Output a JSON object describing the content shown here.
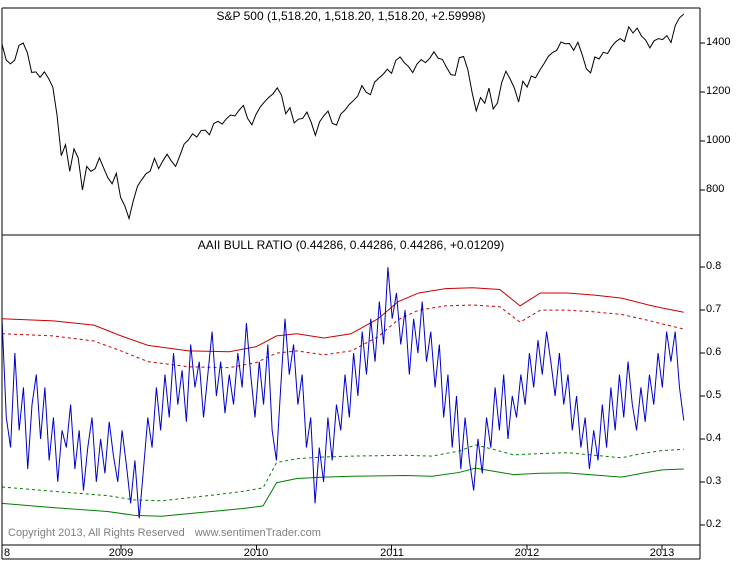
{
  "page": {
    "background": "#ffffff",
    "border_color": "#000000"
  },
  "footer": {
    "copyright": "Copyright 2013, All Rights Reserved",
    "website": "www.sentimenTrader.com",
    "text_color": "#7f7f7f"
  },
  "x_axis": {
    "domain": [
      2008.12,
      2013.28
    ],
    "edge_label": "8",
    "ticks": [
      {
        "label": "2009",
        "value": 2009
      },
      {
        "label": "2010",
        "value": 2010
      },
      {
        "label": "2011",
        "value": 2011
      },
      {
        "label": "2012",
        "value": 2012
      },
      {
        "label": "2013",
        "value": 2013
      }
    ]
  },
  "chart_data": [
    {
      "panel": "price",
      "type": "line",
      "title": "S&P 500 (1,518.20, 1,518.20, 1,518.20, +2.59998)",
      "y_domain": [
        616,
        1543
      ],
      "y_ticks": [
        {
          "label": "1400",
          "value": 1400
        },
        {
          "label": "1200",
          "value": 1200
        },
        {
          "label": "1000",
          "value": 1000
        },
        {
          "label": "800",
          "value": 800
        }
      ],
      "series": [
        {
          "name": "S&P 500",
          "color": "#000000",
          "style": "solid",
          "x_start": 2008.12,
          "x_end": 2013.16,
          "values": [
            1395,
            1330,
            1315,
            1330,
            1390,
            1400,
            1360,
            1280,
            1282,
            1260,
            1282,
            1255,
            1220,
            1105,
            940,
            985,
            876,
            968,
            930,
            800,
            896,
            876,
            887,
            931,
            890,
            850,
            825,
            868,
            770,
            735,
            683,
            756,
            815,
            842,
            866,
            877,
            929,
            887,
            919,
            946,
            918,
            896,
            940,
            987,
            1004,
            1029,
            1016,
            1042,
            1044,
            1025,
            1071,
            1080,
            1069,
            1091,
            1106,
            1102,
            1126,
            1145,
            1092,
            1066,
            1109,
            1139,
            1160,
            1178,
            1192,
            1217,
            1187,
            1111,
            1136,
            1074,
            1089,
            1092,
            1118,
            1077,
            1023,
            1078,
            1103,
            1122,
            1072,
            1065,
            1110,
            1126,
            1149,
            1165,
            1183,
            1226,
            1199,
            1189,
            1240,
            1257,
            1272,
            1293,
            1276,
            1329,
            1343,
            1320,
            1304,
            1279,
            1314,
            1332,
            1320,
            1337,
            1364,
            1338,
            1333,
            1300,
            1271,
            1268,
            1340,
            1345,
            1292,
            1199,
            1123,
            1177,
            1154,
            1216,
            1131,
            1155,
            1238,
            1285,
            1253,
            1216,
            1159,
            1244,
            1220,
            1265,
            1258,
            1289,
            1316,
            1345,
            1361,
            1370,
            1404,
            1397,
            1398,
            1370,
            1403,
            1353,
            1295,
            1278,
            1343,
            1335,
            1362,
            1357,
            1386,
            1406,
            1418,
            1406,
            1466,
            1441,
            1461,
            1429,
            1412,
            1380,
            1409,
            1418,
            1414,
            1430,
            1402,
            1472,
            1503,
            1518
          ]
        }
      ]
    },
    {
      "panel": "indicator",
      "type": "line",
      "title": "AAII BULL RATIO (0.44286, 0.44286, 0.44286, +0.01209)",
      "y_domain": [
        0.153,
        0.875
      ],
      "y_ticks": [
        {
          "label": "0.8",
          "value": 0.8
        },
        {
          "label": "0.7",
          "value": 0.7
        },
        {
          "label": "0.6",
          "value": 0.6
        },
        {
          "label": "0.5",
          "value": 0.5
        },
        {
          "label": "0.4",
          "value": 0.4
        },
        {
          "label": "0.3",
          "value": 0.3
        },
        {
          "label": "0.2",
          "value": 0.2
        }
      ],
      "series": [
        {
          "name": "Upper Band (dashed)",
          "color": "#cc0000",
          "style": "dashed",
          "points": [
            [
              2008.12,
              0.645
            ],
            [
              2008.5,
              0.64
            ],
            [
              2008.8,
              0.628
            ],
            [
              2009.0,
              0.605
            ],
            [
              2009.2,
              0.58
            ],
            [
              2009.5,
              0.568
            ],
            [
              2009.8,
              0.566
            ],
            [
              2010.0,
              0.578
            ],
            [
              2010.15,
              0.6
            ],
            [
              2010.3,
              0.605
            ],
            [
              2010.5,
              0.596
            ],
            [
              2010.7,
              0.605
            ],
            [
              2010.9,
              0.638
            ],
            [
              2011.05,
              0.678
            ],
            [
              2011.2,
              0.7
            ],
            [
              2011.4,
              0.71
            ],
            [
              2011.6,
              0.712
            ],
            [
              2011.8,
              0.708
            ],
            [
              2011.95,
              0.672
            ],
            [
              2012.1,
              0.7
            ],
            [
              2012.3,
              0.7
            ],
            [
              2012.5,
              0.696
            ],
            [
              2012.7,
              0.69
            ],
            [
              2012.9,
              0.676
            ],
            [
              2013.0,
              0.668
            ],
            [
              2013.16,
              0.656
            ]
          ]
        },
        {
          "name": "Upper Band (solid)",
          "color": "#cc0000",
          "style": "solid",
          "points": [
            [
              2008.12,
              0.68
            ],
            [
              2008.5,
              0.675
            ],
            [
              2008.8,
              0.665
            ],
            [
              2009.0,
              0.64
            ],
            [
              2009.2,
              0.618
            ],
            [
              2009.5,
              0.605
            ],
            [
              2009.8,
              0.603
            ],
            [
              2010.0,
              0.615
            ],
            [
              2010.15,
              0.64
            ],
            [
              2010.3,
              0.645
            ],
            [
              2010.5,
              0.635
            ],
            [
              2010.7,
              0.645
            ],
            [
              2010.9,
              0.68
            ],
            [
              2011.05,
              0.72
            ],
            [
              2011.2,
              0.74
            ],
            [
              2011.4,
              0.75
            ],
            [
              2011.6,
              0.752
            ],
            [
              2011.8,
              0.748
            ],
            [
              2011.95,
              0.71
            ],
            [
              2012.1,
              0.74
            ],
            [
              2012.3,
              0.74
            ],
            [
              2012.5,
              0.735
            ],
            [
              2012.7,
              0.728
            ],
            [
              2012.9,
              0.712
            ],
            [
              2013.0,
              0.705
            ],
            [
              2013.16,
              0.695
            ]
          ]
        },
        {
          "name": "Lower Band (dashed)",
          "color": "#007f00",
          "style": "dashed",
          "points": [
            [
              2008.12,
              0.288
            ],
            [
              2008.5,
              0.278
            ],
            [
              2008.9,
              0.268
            ],
            [
              2009.1,
              0.258
            ],
            [
              2009.3,
              0.256
            ],
            [
              2009.5,
              0.263
            ],
            [
              2009.7,
              0.27
            ],
            [
              2009.9,
              0.278
            ],
            [
              2010.05,
              0.286
            ],
            [
              2010.15,
              0.345
            ],
            [
              2010.3,
              0.354
            ],
            [
              2010.5,
              0.358
            ],
            [
              2010.7,
              0.36
            ],
            [
              2010.9,
              0.361
            ],
            [
              2011.1,
              0.362
            ],
            [
              2011.3,
              0.36
            ],
            [
              2011.5,
              0.372
            ],
            [
              2011.62,
              0.386
            ],
            [
              2011.75,
              0.376
            ],
            [
              2011.9,
              0.363
            ],
            [
              2012.1,
              0.366
            ],
            [
              2012.3,
              0.368
            ],
            [
              2012.5,
              0.362
            ],
            [
              2012.7,
              0.356
            ],
            [
              2012.85,
              0.366
            ],
            [
              2013.0,
              0.373
            ],
            [
              2013.16,
              0.376
            ]
          ]
        },
        {
          "name": "Lower Band (solid)",
          "color": "#007f00",
          "style": "solid",
          "points": [
            [
              2008.12,
              0.25
            ],
            [
              2008.5,
              0.24
            ],
            [
              2008.9,
              0.231
            ],
            [
              2009.1,
              0.222
            ],
            [
              2009.3,
              0.22
            ],
            [
              2009.5,
              0.226
            ],
            [
              2009.7,
              0.232
            ],
            [
              2009.9,
              0.238
            ],
            [
              2010.05,
              0.244
            ],
            [
              2010.15,
              0.298
            ],
            [
              2010.3,
              0.308
            ],
            [
              2010.5,
              0.311
            ],
            [
              2010.7,
              0.313
            ],
            [
              2010.9,
              0.314
            ],
            [
              2011.1,
              0.315
            ],
            [
              2011.3,
              0.313
            ],
            [
              2011.5,
              0.322
            ],
            [
              2011.62,
              0.332
            ],
            [
              2011.75,
              0.325
            ],
            [
              2011.9,
              0.317
            ],
            [
              2012.1,
              0.32
            ],
            [
              2012.3,
              0.321
            ],
            [
              2012.5,
              0.316
            ],
            [
              2012.7,
              0.311
            ],
            [
              2012.85,
              0.32
            ],
            [
              2013.0,
              0.328
            ],
            [
              2013.16,
              0.33
            ]
          ]
        },
        {
          "name": "AAII Bull Ratio",
          "color": "#0000cc",
          "style": "solid",
          "x_start": 2008.12,
          "x_end": 2013.16,
          "values": [
            0.68,
            0.45,
            0.38,
            0.6,
            0.42,
            0.52,
            0.33,
            0.48,
            0.55,
            0.4,
            0.52,
            0.35,
            0.45,
            0.3,
            0.42,
            0.38,
            0.48,
            0.33,
            0.42,
            0.28,
            0.38,
            0.45,
            0.3,
            0.4,
            0.32,
            0.44,
            0.36,
            0.3,
            0.42,
            0.34,
            0.25,
            0.35,
            0.215,
            0.33,
            0.45,
            0.38,
            0.52,
            0.42,
            0.55,
            0.45,
            0.6,
            0.48,
            0.56,
            0.44,
            0.62,
            0.52,
            0.58,
            0.45,
            0.55,
            0.65,
            0.5,
            0.58,
            0.46,
            0.55,
            0.48,
            0.6,
            0.52,
            0.67,
            0.55,
            0.45,
            0.58,
            0.48,
            0.62,
            0.42,
            0.35,
            0.52,
            0.68,
            0.55,
            0.62,
            0.48,
            0.55,
            0.38,
            0.45,
            0.25,
            0.38,
            0.3,
            0.45,
            0.35,
            0.48,
            0.42,
            0.55,
            0.45,
            0.6,
            0.5,
            0.65,
            0.55,
            0.68,
            0.58,
            0.72,
            0.62,
            0.8,
            0.68,
            0.74,
            0.62,
            0.7,
            0.55,
            0.68,
            0.6,
            0.72,
            0.58,
            0.65,
            0.52,
            0.62,
            0.45,
            0.55,
            0.38,
            0.5,
            0.33,
            0.45,
            0.35,
            0.28,
            0.4,
            0.32,
            0.45,
            0.38,
            0.52,
            0.42,
            0.55,
            0.4,
            0.5,
            0.45,
            0.55,
            0.48,
            0.6,
            0.52,
            0.63,
            0.55,
            0.65,
            0.58,
            0.5,
            0.6,
            0.48,
            0.55,
            0.42,
            0.5,
            0.38,
            0.45,
            0.33,
            0.42,
            0.35,
            0.48,
            0.38,
            0.52,
            0.42,
            0.55,
            0.45,
            0.58,
            0.48,
            0.42,
            0.52,
            0.44,
            0.55,
            0.48,
            0.6,
            0.52,
            0.65,
            0.58,
            0.65,
            0.52,
            0.443
          ]
        }
      ]
    }
  ]
}
